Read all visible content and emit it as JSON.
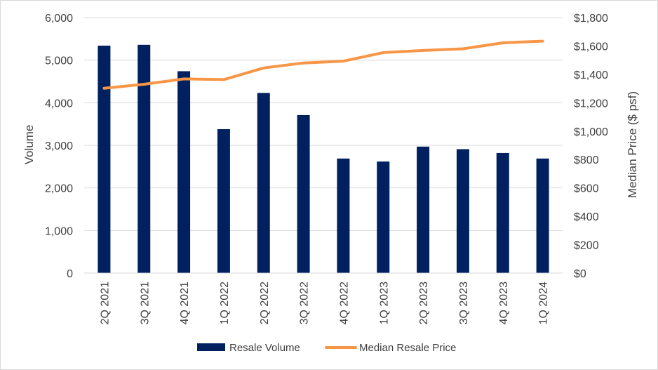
{
  "chart_data": {
    "type": "bar",
    "categories": [
      "2Q 2021",
      "3Q 2021",
      "4Q 2021",
      "1Q 2022",
      "2Q 2022",
      "3Q 2022",
      "4Q 2022",
      "1Q 2023",
      "2Q 2023",
      "3Q 2023",
      "4Q 2023",
      "1Q 2024"
    ],
    "series": [
      {
        "name": "Resale Volume",
        "type": "bar",
        "axis": "left",
        "color": "#002060",
        "values": [
          5340,
          5360,
          4740,
          3380,
          4230,
          3710,
          2690,
          2620,
          2970,
          2910,
          2820,
          2690
        ]
      },
      {
        "name": "Median Resale Price",
        "type": "line",
        "axis": "right",
        "color": "#F79646",
        "values": [
          1302,
          1330,
          1368,
          1363,
          1445,
          1480,
          1493,
          1553,
          1568,
          1580,
          1622,
          1634
        ]
      }
    ],
    "ylabel": "Volume",
    "y2label": "Median Price ($ psf)",
    "ylim": [
      0,
      6000
    ],
    "y2lim": [
      0,
      1800
    ],
    "yticks": [
      "0",
      "1,000",
      "2,000",
      "3,000",
      "4,000",
      "5,000",
      "6,000"
    ],
    "y2ticks": [
      "$0",
      "$200",
      "$400",
      "$600",
      "$800",
      "$1,000",
      "$1,200",
      "$1,400",
      "$1,600",
      "$1,800"
    ],
    "grid": "horizontal",
    "legend": "bottom"
  }
}
